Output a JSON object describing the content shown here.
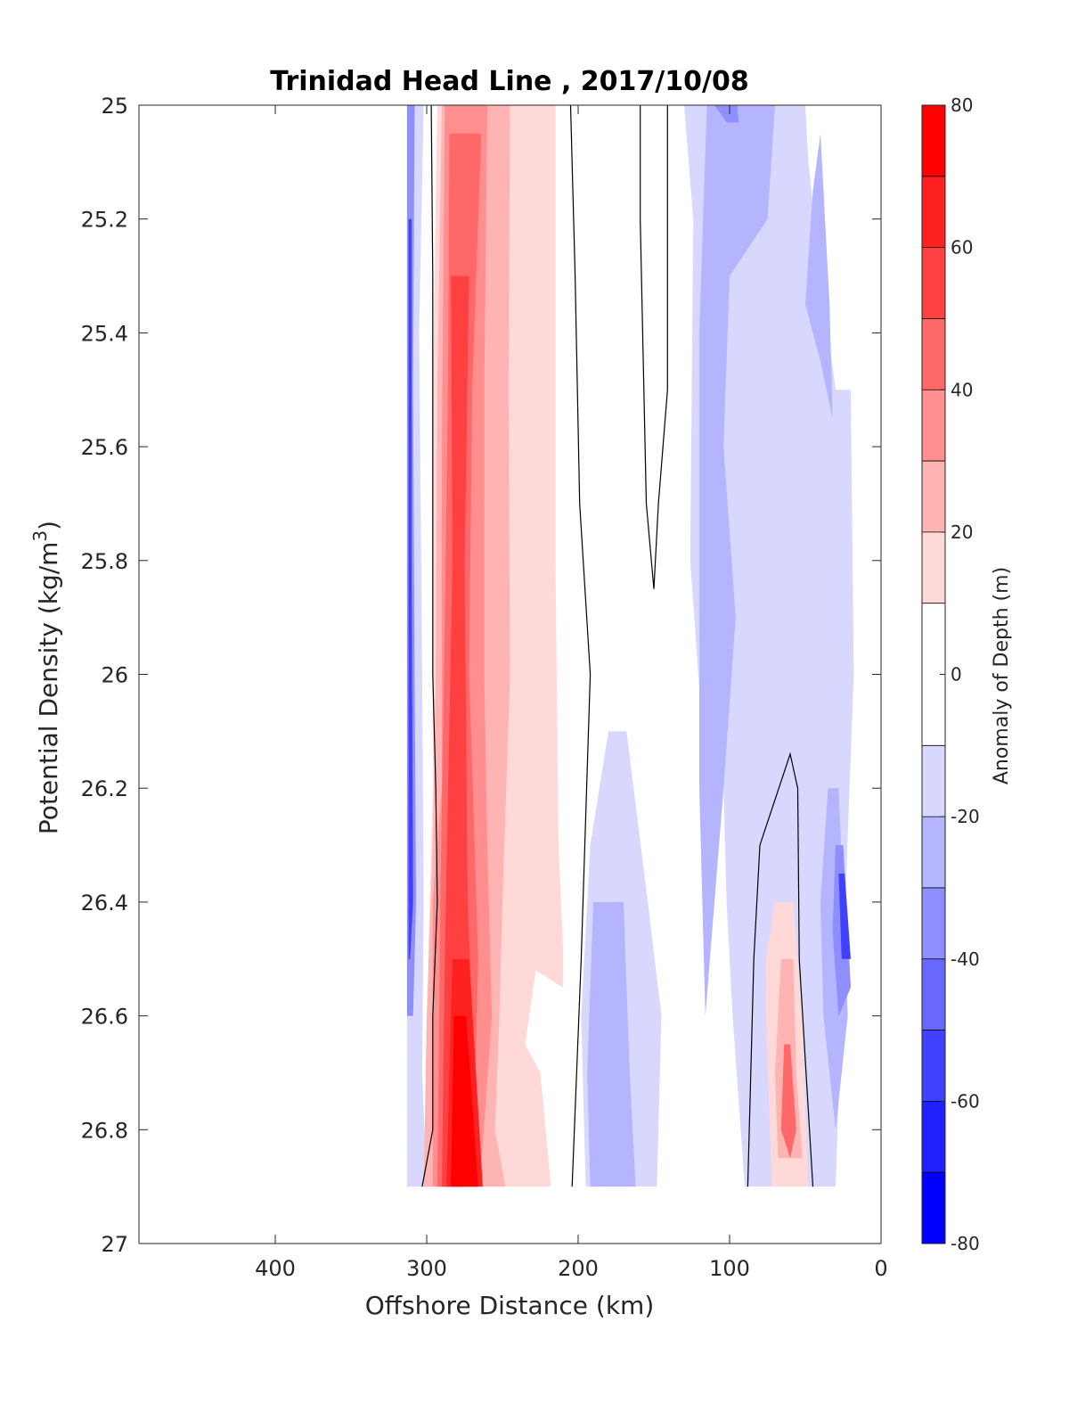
{
  "chart_data": {
    "type": "heatmap",
    "subtype": "filled-contour",
    "title": "Trinidad Head Line , 2017/10/08",
    "xlabel": "Offshore Distance (km)",
    "ylabel_main": "Potential Density (kg/m",
    "ylabel_sup": "3",
    "ylabel_end": ")",
    "colorbar_label": "Anomaly of Depth (m)",
    "x_reversed": true,
    "y_reversed": true,
    "xlim": [
      490,
      0
    ],
    "ylim": [
      25,
      27
    ],
    "x_ticks": [
      400,
      300,
      200,
      100,
      0
    ],
    "x_tick_labels": [
      "400",
      "300",
      "200",
      "100",
      "0"
    ],
    "y_ticks": [
      25,
      25.2,
      25.4,
      25.6,
      25.8,
      26,
      26.2,
      26.4,
      26.6,
      26.8,
      27
    ],
    "y_tick_labels": [
      "25",
      "25.2",
      "25.4",
      "25.6",
      "25.8",
      "26",
      "26.2",
      "26.4",
      "26.6",
      "26.8",
      "27"
    ],
    "colorbar_ticks": [
      80,
      60,
      40,
      20,
      0,
      -20,
      -40,
      -60,
      -80
    ],
    "colorbar_tick_labels": [
      "80",
      "60",
      "40",
      "20",
      "0",
      "-20",
      "-40",
      "-60",
      "-80"
    ],
    "colorbar_levels": [
      -80,
      -70,
      -60,
      -50,
      -40,
      -30,
      -20,
      -10,
      10,
      20,
      30,
      40,
      50,
      60,
      70,
      80
    ],
    "colorbar_colors": [
      "#0000ff",
      "#2020ff",
      "#4040ff",
      "#6868ff",
      "#8e8eff",
      "#b4b4ff",
      "#d8d8ff",
      "#ffffff",
      "#ffd8d8",
      "#ffb4b4",
      "#ff8e8e",
      "#ff6868",
      "#ff4040",
      "#ff2020",
      "#ff0000"
    ],
    "regions": [
      {
        "level": -20,
        "color": "#d8d8ff",
        "points": [
          [
            313,
            25
          ],
          [
            302,
            25
          ],
          [
            305,
            25.4
          ],
          [
            303,
            26
          ],
          [
            302,
            26.4
          ],
          [
            303,
            26.7
          ],
          [
            300,
            26.9
          ],
          [
            313,
            26.9
          ]
        ]
      },
      {
        "level": -40,
        "color": "#8e8eff",
        "points": [
          [
            313,
            25
          ],
          [
            308,
            25
          ],
          [
            309,
            25.5
          ],
          [
            308,
            26
          ],
          [
            307,
            26.4
          ],
          [
            309,
            26.6
          ],
          [
            313,
            26.6
          ]
        ]
      },
      {
        "level": -60,
        "color": "#4040ff",
        "points": [
          [
            312,
            25.2
          ],
          [
            310,
            25.2
          ],
          [
            310,
            25.8
          ],
          [
            309,
            26.4
          ],
          [
            311,
            26.5
          ],
          [
            312,
            26.5
          ]
        ]
      },
      {
        "level": 20,
        "color": "#ffd8d8",
        "points": [
          [
            293,
            25
          ],
          [
            215,
            25
          ],
          [
            215,
            25.8
          ],
          [
            213,
            26.3
          ],
          [
            210,
            26.48
          ],
          [
            210,
            26.55
          ],
          [
            228,
            26.52
          ],
          [
            235,
            26.65
          ],
          [
            225,
            26.7
          ],
          [
            218,
            26.9
          ],
          [
            297,
            26.9
          ],
          [
            299,
            26.5
          ],
          [
            296,
            26.2
          ],
          [
            296,
            25.5
          ]
        ]
      },
      {
        "level": 30,
        "color": "#ffb4b4",
        "points": [
          [
            290,
            25
          ],
          [
            245,
            25
          ],
          [
            246,
            25.5
          ],
          [
            245,
            26
          ],
          [
            250,
            26.4
          ],
          [
            252,
            26.6
          ],
          [
            255,
            26.8
          ],
          [
            248,
            26.9
          ],
          [
            302,
            26.9
          ],
          [
            300,
            26.6
          ],
          [
            296,
            26.3
          ],
          [
            294,
            26
          ],
          [
            293,
            25.5
          ]
        ]
      },
      {
        "level": 40,
        "color": "#ff8e8e",
        "points": [
          [
            288,
            25
          ],
          [
            260,
            25
          ],
          [
            262,
            25.5
          ],
          [
            262,
            26
          ],
          [
            260,
            26.3
          ],
          [
            257,
            26.6
          ],
          [
            265,
            26.9
          ],
          [
            296,
            26.9
          ],
          [
            296,
            26.4
          ],
          [
            290,
            26.2
          ],
          [
            290,
            25.6
          ]
        ]
      },
      {
        "level": 50,
        "color": "#ff6868",
        "points": [
          [
            285,
            25.05
          ],
          [
            264,
            25.05
          ],
          [
            270,
            25.5
          ],
          [
            272,
            26
          ],
          [
            266,
            26.5
          ],
          [
            270,
            26.9
          ],
          [
            293,
            26.9
          ],
          [
            291,
            26.4
          ],
          [
            288,
            25.9
          ],
          [
            286,
            25.5
          ]
        ]
      },
      {
        "level": 60,
        "color": "#ff4040",
        "points": [
          [
            284,
            25.3
          ],
          [
            272,
            25.3
          ],
          [
            275,
            25.8
          ],
          [
            273,
            26.4
          ],
          [
            270,
            26.6
          ],
          [
            276,
            26.9
          ],
          [
            290,
            26.9
          ],
          [
            288,
            26.5
          ],
          [
            283,
            25.8
          ]
        ]
      },
      {
        "level": 70,
        "color": "#ff2020",
        "points": [
          [
            283,
            26.5
          ],
          [
            272,
            26.5
          ],
          [
            263,
            26.9
          ],
          [
            287,
            26.9
          ]
        ]
      },
      {
        "level": 80,
        "color": "#ff0000",
        "points": [
          [
            282,
            26.6
          ],
          [
            274,
            26.6
          ],
          [
            266,
            26.9
          ],
          [
            284,
            26.9
          ]
        ]
      },
      {
        "level": -20,
        "color": "#d8d8ff",
        "points": [
          [
            130,
            25
          ],
          [
            50,
            25
          ],
          [
            48,
            25.1
          ],
          [
            40,
            25.3
          ],
          [
            30,
            25.5
          ],
          [
            20,
            25.5
          ],
          [
            18,
            26
          ],
          [
            25,
            26.5
          ],
          [
            30,
            26.9
          ],
          [
            90,
            26.9
          ],
          [
            98,
            26.6
          ],
          [
            102,
            26.4
          ],
          [
            104,
            26.2
          ],
          [
            118,
            26.1
          ],
          [
            126,
            25.8
          ],
          [
            124,
            25.2
          ]
        ]
      },
      {
        "level": -20,
        "color": "#d8d8ff",
        "points": [
          [
            180,
            26.1
          ],
          [
            168,
            26.1
          ],
          [
            154,
            26.4
          ],
          [
            145,
            26.6
          ],
          [
            148,
            26.9
          ],
          [
            195,
            26.9
          ],
          [
            198,
            26.6
          ],
          [
            192,
            26.3
          ]
        ]
      },
      {
        "level": -30,
        "color": "#b4b4ff",
        "points": [
          [
            115,
            25
          ],
          [
            70,
            25
          ],
          [
            75,
            25.2
          ],
          [
            100,
            25.3
          ],
          [
            104,
            25.6
          ],
          [
            96,
            25.9
          ],
          [
            104,
            26.2
          ],
          [
            110,
            26.4
          ],
          [
            116,
            26.6
          ],
          [
            120,
            26.2
          ],
          [
            120,
            25.4
          ]
        ]
      },
      {
        "level": -30,
        "color": "#b4b4ff",
        "points": [
          [
            190,
            26.4
          ],
          [
            170,
            26.4
          ],
          [
            166,
            26.7
          ],
          [
            162,
            26.9
          ],
          [
            192,
            26.9
          ],
          [
            194,
            26.7
          ]
        ]
      },
      {
        "level": -30,
        "color": "#b4b4ff",
        "points": [
          [
            40,
            25.05
          ],
          [
            45,
            25.15
          ],
          [
            50,
            25.35
          ],
          [
            40,
            25.45
          ],
          [
            32,
            25.55
          ],
          [
            34,
            25.35
          ]
        ]
      },
      {
        "level": -30,
        "color": "#b4b4ff",
        "points": [
          [
            35,
            26.2
          ],
          [
            28,
            26.2
          ],
          [
            22,
            26.6
          ],
          [
            30,
            26.8
          ],
          [
            38,
            26.6
          ],
          [
            40,
            26.4
          ]
        ]
      },
      {
        "level": -40,
        "color": "#8e8eff",
        "points": [
          [
            110,
            25
          ],
          [
            95,
            25
          ],
          [
            94,
            25.03
          ],
          [
            102,
            25.03
          ]
        ]
      },
      {
        "level": -40,
        "color": "#8e8eff",
        "points": [
          [
            30,
            26.3
          ],
          [
            25,
            26.3
          ],
          [
            20,
            26.55
          ],
          [
            28,
            26.6
          ],
          [
            32,
            26.45
          ]
        ]
      },
      {
        "level": -60,
        "color": "#4040ff",
        "points": [
          [
            28,
            26.35
          ],
          [
            24,
            26.35
          ],
          [
            20,
            26.5
          ],
          [
            26,
            26.5
          ]
        ]
      },
      {
        "level": 20,
        "color": "#ffd8d8",
        "points": [
          [
            70,
            26.4
          ],
          [
            58,
            26.4
          ],
          [
            52,
            26.6
          ],
          [
            48,
            26.9
          ],
          [
            72,
            26.9
          ],
          [
            76,
            26.6
          ],
          [
            76,
            26.5
          ]
        ]
      },
      {
        "level": 30,
        "color": "#ffb4b4",
        "points": [
          [
            66,
            26.5
          ],
          [
            58,
            26.5
          ],
          [
            56,
            26.7
          ],
          [
            52,
            26.85
          ],
          [
            68,
            26.85
          ],
          [
            70,
            26.7
          ]
        ]
      },
      {
        "level": 50,
        "color": "#ff6868",
        "points": [
          [
            64,
            26.65
          ],
          [
            60,
            26.65
          ],
          [
            56,
            26.8
          ],
          [
            60,
            26.85
          ],
          [
            66,
            26.8
          ]
        ]
      }
    ],
    "contour_lines": [
      {
        "level": 0,
        "points": [
          [
            297,
            25
          ],
          [
            296,
            25.3
          ],
          [
            296,
            26
          ],
          [
            294,
            26.2
          ],
          [
            293,
            26.4
          ],
          [
            296,
            26.6
          ],
          [
            296,
            26.8
          ],
          [
            303,
            26.9
          ]
        ]
      },
      {
        "level": 0,
        "points": [
          [
            205,
            25
          ],
          [
            202,
            25.3
          ],
          [
            199,
            25.7
          ],
          [
            192,
            26
          ],
          [
            198,
            26.5
          ],
          [
            204,
            26.9
          ]
        ]
      },
      {
        "level": 0,
        "points": [
          [
            159,
            25
          ],
          [
            159,
            25.2
          ],
          [
            155,
            25.7
          ],
          [
            150,
            25.85
          ],
          [
            147,
            25.7
          ],
          [
            141,
            25.5
          ],
          [
            141,
            25
          ]
        ]
      },
      {
        "level": 0,
        "points": [
          [
            88,
            26.9
          ],
          [
            84,
            26.5
          ],
          [
            80,
            26.3
          ],
          [
            70,
            26.22
          ],
          [
            60,
            26.14
          ],
          [
            55,
            26.2
          ],
          [
            54,
            26.5
          ],
          [
            45,
            26.9
          ]
        ]
      }
    ]
  }
}
